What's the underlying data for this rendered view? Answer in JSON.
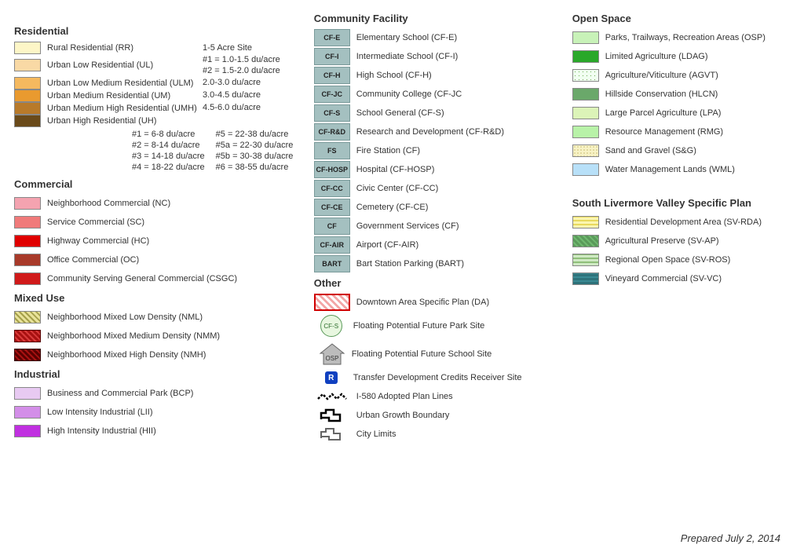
{
  "col1": {
    "residential": {
      "title": "Residential",
      "items": [
        {
          "color": "#fdf6c7",
          "label": "Rural Residential (RR)",
          "note": "1-5 Acre Site"
        },
        {
          "color": "#f9d9a5",
          "label": "Urban Low Residential (UL)",
          "note": "#1 = 1.0-1.5 du/acre\n#2 = 1.5-2.0 du/acre"
        },
        {
          "color": "#f5b95f",
          "label": "Urban Low Medium Residential (ULM)",
          "note": "2.0-3.0 du/acre"
        },
        {
          "color": "#e99a2f",
          "label": "Urban Medium Residential (UM)",
          "note": "3.0-4.5 du/acre"
        },
        {
          "color": "#b87a2a",
          "label": "Urban Medium High Residential (UMH)",
          "note": "4.5-6.0 du/acre"
        },
        {
          "color": "#6a4a1a",
          "label": "Urban High Residential (UH)",
          "note": ""
        }
      ],
      "density_left": "#1 = 6-8 du/acre\n#2 = 8-14 du/acre\n#3 = 14-18 du/acre\n#4 = 18-22 du/acre",
      "density_right": "#5 = 22-38 du/acre\n#5a = 22-30 du/acre\n#5b = 30-38 du/acre\n#6 = 38-55 du/acre"
    },
    "commercial": {
      "title": "Commercial",
      "items": [
        {
          "color": "#f4a3b0",
          "label": "Neighborhood Commercial (NC)"
        },
        {
          "color": "#f07a7a",
          "label": "Service Commercial (SC)"
        },
        {
          "color": "#e00000",
          "label": "Highway Commercial (HC)"
        },
        {
          "color": "#a83a2a",
          "label": "Office Commercial (OC)"
        },
        {
          "color": "#d01a1a",
          "label": "Community Serving General Commercial (CSGC)"
        }
      ]
    },
    "mixeduse": {
      "title": "Mixed Use",
      "items": [
        {
          "cls": "hatch-yellow",
          "label": "Neighborhood Mixed Low Density (NML)"
        },
        {
          "cls": "hatch-red",
          "label": "Neighborhood Mixed Medium Density (NMM)"
        },
        {
          "cls": "hatch-darkred",
          "label": "Neighborhood Mixed High Density (NMH)"
        }
      ]
    },
    "industrial": {
      "title": "Industrial",
      "items": [
        {
          "color": "#e8caf2",
          "label": "Business and Commercial Park (BCP)"
        },
        {
          "color": "#d38ee8",
          "label": "Low Intensity Industrial (LII)"
        },
        {
          "color": "#c030e0",
          "label": "High Intensity Industrial (HII)"
        }
      ]
    }
  },
  "col2": {
    "cf": {
      "title": "Community Facility",
      "bg": "#a4c0c0",
      "items": [
        {
          "code": "CF-E",
          "label": "Elementary School (CF-E)"
        },
        {
          "code": "CF-I",
          "label": "Intermediate School (CF-I)"
        },
        {
          "code": "CF-H",
          "label": "High School (CF-H)"
        },
        {
          "code": "CF-JC",
          "label": "Community College (CF-JC"
        },
        {
          "code": "CF-S",
          "label": "School General (CF-S)"
        },
        {
          "code": "CF-R&D",
          "label": "Research and Development (CF-R&D)"
        },
        {
          "code": "FS",
          "label": "Fire Station (CF)"
        },
        {
          "code": "CF-HOSP",
          "label": "Hospital (CF-HOSP)"
        },
        {
          "code": "CF-CC",
          "label": "Civic Center (CF-CC)"
        },
        {
          "code": "CF-CE",
          "label": "Cemetery (CF-CE)"
        },
        {
          "code": "CF",
          "label": "Government Services (CF)"
        },
        {
          "code": "CF-AIR",
          "label": "Airport (CF-AIR)"
        },
        {
          "code": "BART",
          "label": "Bart Station Parking (BART)"
        }
      ]
    },
    "other": {
      "title": "Other",
      "da_label": "Downtown Area Specific Plan (DA)",
      "cfs_label": "Floating Potential Future Park Site",
      "osp_label": "Floating Potential Future School Site",
      "r_label": "Transfer Development Credits Receiver Site",
      "i580_label": "I-580 Adopted Plan Lines",
      "ugb_label": "Urban Growth Boundary",
      "cl_label": "City Limits"
    }
  },
  "col3": {
    "os": {
      "title": "Open Space",
      "items": [
        {
          "color": "#c8f2b8",
          "label": "Parks, Trailways, Recreation Areas (OSP)"
        },
        {
          "color": "#2aa82a",
          "label": "Limited Agriculture (LDAG)"
        },
        {
          "cls": "dots-green",
          "label": "Agriculture/Viticulture (AGVT)"
        },
        {
          "color": "#6aa86a",
          "label": "Hillside Conservation (HLCN)"
        },
        {
          "color": "#dcf4b8",
          "label": "Large Parcel Agriculture (LPA)"
        },
        {
          "color": "#b8f2a8",
          "label": "Resource Management (RMG)"
        },
        {
          "cls": "dots-sand",
          "label": "Sand and Gravel (S&G)"
        },
        {
          "color": "#b8e0f8",
          "label": "Water Management Lands (WML)"
        }
      ]
    },
    "slv": {
      "title": "South Livermore Valley Specific Plan",
      "items": [
        {
          "cls": "stripe-h-yellow",
          "label": "Residential Development Area (SV-RDA)"
        },
        {
          "cls": "hatch-green",
          "label": "Agricultural Preserve (SV-AP)"
        },
        {
          "cls": "stripe-h-green",
          "label": "Regional Open Space (SV-ROS)"
        },
        {
          "cls": "stripe-h-teal",
          "label": "Vineyard Commercial (SV-VC)"
        }
      ]
    }
  },
  "prepared": "Prepared July 2, 2014"
}
